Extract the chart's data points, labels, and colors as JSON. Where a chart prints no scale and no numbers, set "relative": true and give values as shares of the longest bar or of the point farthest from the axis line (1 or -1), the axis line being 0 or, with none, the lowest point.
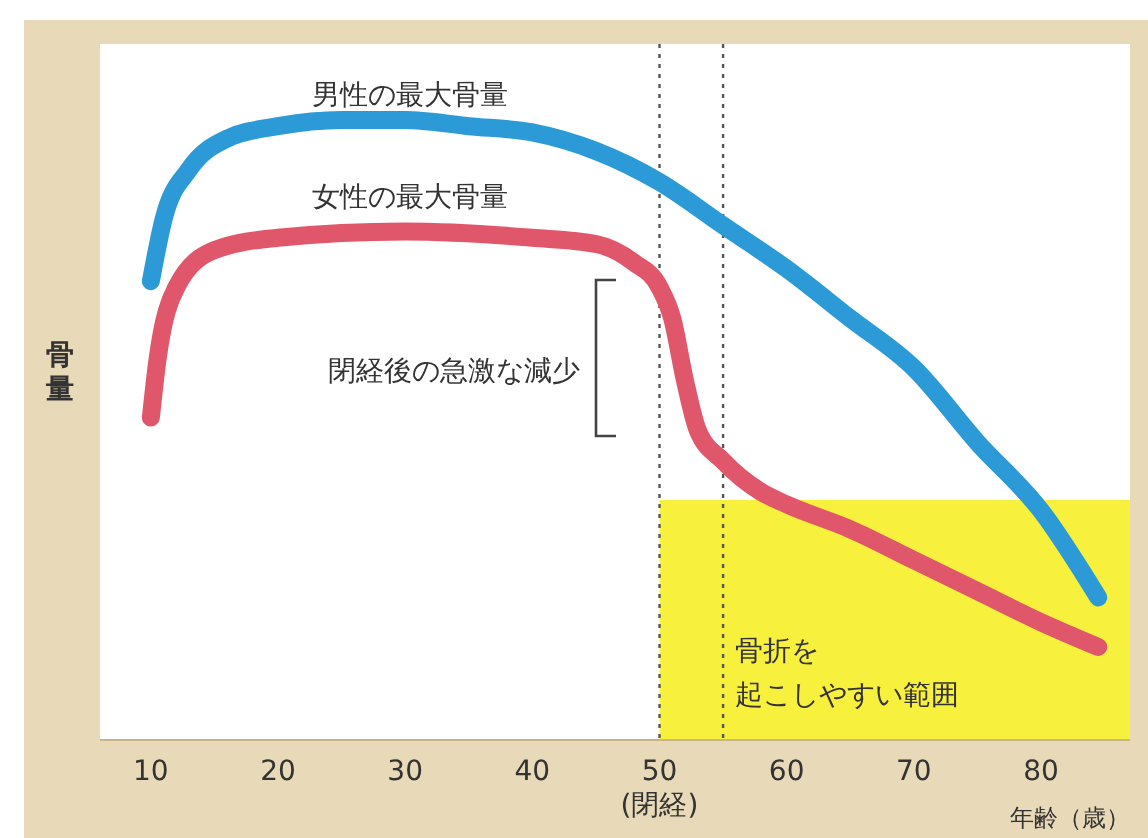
{
  "chart_data": {
    "type": "line",
    "relative": true,
    "xlim": [
      6,
      87
    ],
    "xticks": [
      10,
      20,
      30,
      40,
      {
        "value": 50,
        "label": "50\n(閉経)"
      },
      60,
      70,
      80
    ],
    "xlabel": "年齢（歳）",
    "ylabel": "骨量",
    "line_style": "solid",
    "series": [
      {
        "color": "#2b9ad6",
        "x": [
          10,
          11,
          13,
          16,
          20,
          25,
          30,
          35,
          40,
          45,
          50,
          55,
          60,
          65,
          70,
          75,
          80,
          84.5
        ],
        "values": [
          0.74,
          0.84,
          0.92,
          0.97,
          0.99,
          1,
          1,
          0.99,
          0.98,
          0.95,
          0.9,
          0.83,
          0.76,
          0.68,
          0.6,
          0.48,
          0.37,
          0.23
        ]
      },
      {
        "color": "#e0566a",
        "x": [
          10,
          10.5,
          12,
          15,
          20,
          30,
          40,
          45,
          48,
          50,
          51,
          52,
          53,
          55,
          58,
          60,
          65,
          70,
          75,
          80,
          84.5
        ],
        "values": [
          0.52,
          0.61,
          0.73,
          0.79,
          0.81,
          0.82,
          0.81,
          0.8,
          0.77,
          0.73,
          0.68,
          0.58,
          0.5,
          0.45,
          0.4,
          0.38,
          0.34,
          0.29,
          0.24,
          0.19,
          0.15
        ]
      }
    ],
    "ref_lines": [
      {
        "axis": "x",
        "value": 50,
        "line_style": "dotted",
        "color": "#555555"
      },
      {
        "axis": "x",
        "value": 55,
        "line_style": "dotted",
        "color": "#555555"
      }
    ],
    "bands": [
      {
        "axis": "x",
        "from": 50,
        "to": 87,
        "label": "骨折を起こしやすい範囲",
        "color": "#f7f03c"
      }
    ],
    "annotations": [
      "男性の最大骨量",
      "女性の最大骨量",
      "閉経後の急激な減少"
    ]
  }
}
